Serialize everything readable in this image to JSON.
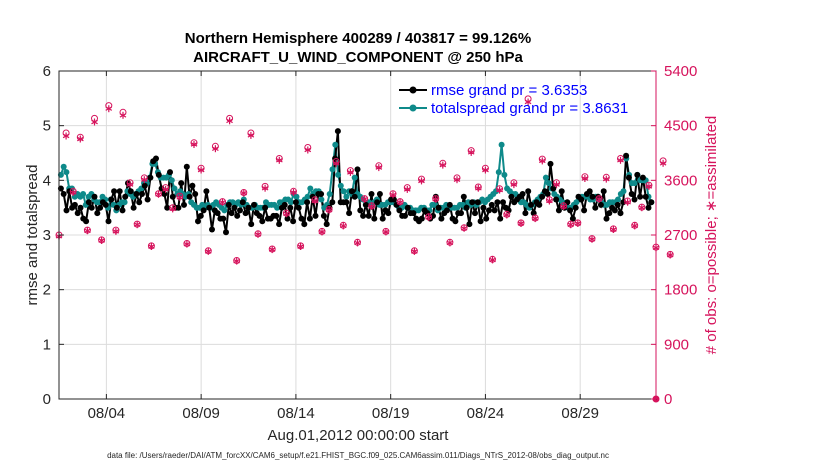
{
  "chart_data": {
    "type": "line",
    "title": "Northern Hemisphere 400289 / 403817 = 99.126%",
    "subtitle": "AIRCRAFT_U_WIND_COMPONENT @ 250 hPa",
    "xlabel": "Aug.01,2012 00:00:00 start",
    "ylabel": "rmse and totalspread",
    "ylabel_right": "# of obs: o=possible; ∗=assimilated",
    "xlim": [
      0,
      31.5
    ],
    "ylim": [
      0,
      6
    ],
    "ylim_right": [
      0,
      5400
    ],
    "x_ticks": [
      {
        "x": 2.5,
        "label": "08/04"
      },
      {
        "x": 7.5,
        "label": "08/09"
      },
      {
        "x": 12.5,
        "label": "08/14"
      },
      {
        "x": 17.5,
        "label": "08/19"
      },
      {
        "x": 22.5,
        "label": "08/24"
      },
      {
        "x": 27.5,
        "label": "08/29"
      }
    ],
    "y_ticks": [
      0,
      1,
      2,
      3,
      4,
      5,
      6
    ],
    "y_ticks_right": [
      0,
      900,
      1800,
      2700,
      3600,
      4500,
      5400
    ],
    "footer": "data file: /Users/raeder/DAI/ATM_forcXX/CAM6_setup/f.e21.FHIST_BGC.f09_025.CAM6assim.011/Diags_NTrS_2012-08/obs_diag_output.nc",
    "legend_position": "top-right",
    "series": [
      {
        "name": "rmse grand pr = 3.6353",
        "color": "#000000",
        "axis": "left",
        "values": [
          3.85,
          3.75,
          3.45,
          3.8,
          3.5,
          3.55,
          3.4,
          3.5,
          3.3,
          3.25,
          3.6,
          3.5,
          3.7,
          3.4,
          3.5,
          3.6,
          3.55,
          3.25,
          3.65,
          3.8,
          3.5,
          3.8,
          3.45,
          3.7,
          3.95,
          3.8,
          3.5,
          3.75,
          3.6,
          3.75,
          3.9,
          3.65,
          4.05,
          4.35,
          4.4,
          4.1,
          3.85,
          3.75,
          3.5,
          4.15,
          3.7,
          3.5,
          3.5,
          3.95,
          3.55,
          4.25,
          3.7,
          3.9,
          3.75,
          3.25,
          3.35,
          3.45,
          3.8,
          3.5,
          3.1,
          3.45,
          3.4,
          3.3,
          3.3,
          3.05,
          3.55,
          3.4,
          3.5,
          3.35,
          3.45,
          3.6,
          3.4,
          3.5,
          3.2,
          3.55,
          3.4,
          3.35,
          3.25,
          3.5,
          3.3,
          3.3,
          3.35,
          3.35,
          3.2,
          3.5,
          3.55,
          3.3,
          3.5,
          3.25,
          3.6,
          3.5,
          3.3,
          3.2,
          3.6,
          3.3,
          3.7,
          3.35,
          3.75,
          3.75,
          3.35,
          3.2,
          3.5,
          3.6,
          4.4,
          4.9,
          3.6,
          3.6,
          3.6,
          3.4,
          3.8,
          3.7,
          4.2,
          3.45,
          3.35,
          3.55,
          3.35,
          3.75,
          3.3,
          3.6,
          3.75,
          3.3,
          3.45,
          3.4,
          3.65,
          3.65,
          3.55,
          3.45,
          3.35,
          3.35,
          3.5,
          3.4,
          3.4,
          3.3,
          3.25,
          3.3,
          3.45,
          3.4,
          3.3,
          3.35,
          3.7,
          3.5,
          3.3,
          3.4,
          3.45,
          3.55,
          3.3,
          3.25,
          3.4,
          3.4,
          3.7,
          3.5,
          3.2,
          3.6,
          3.4,
          3.6,
          3.25,
          3.5,
          3.3,
          3.45,
          3.55,
          3.45,
          3.6,
          3.3,
          3.6,
          3.5,
          3.45,
          3.7,
          3.6,
          3.65,
          3.7,
          3.75,
          3.4,
          3.8,
          3.55,
          3.4,
          3.6,
          3.55,
          3.7,
          3.8,
          3.75,
          4.3,
          3.85,
          3.65,
          3.45,
          3.8,
          3.5,
          3.6,
          3.45,
          3.3,
          3.5,
          3.7,
          3.65,
          3.45,
          3.75,
          3.8,
          3.7,
          3.5,
          3.7,
          3.55,
          3.8,
          3.3,
          3.4,
          3.5,
          3.45,
          3.55,
          3.4,
          3.6,
          4.45,
          4.05,
          3.75,
          3.65,
          4.1,
          3.7,
          4.05,
          3.7,
          3.5,
          3.6
        ]
      },
      {
        "name": "totalspread grand pr = 3.8631",
        "color": "#0e8a8a",
        "axis": "left",
        "values": [
          4.1,
          4.25,
          4.15,
          3.85,
          3.85,
          3.7,
          3.75,
          3.7,
          3.75,
          3.55,
          3.7,
          3.75,
          3.65,
          3.6,
          3.6,
          3.7,
          3.65,
          3.5,
          3.65,
          3.55,
          3.45,
          3.55,
          3.6,
          3.6,
          3.8,
          3.75,
          3.7,
          3.75,
          3.8,
          3.85,
          3.95,
          3.95,
          4.05,
          4.3,
          4.3,
          4.15,
          4.05,
          4.05,
          4.05,
          4.1,
          4.0,
          3.85,
          3.75,
          3.8,
          3.75,
          3.7,
          3.75,
          3.6,
          3.55,
          3.5,
          3.5,
          3.55,
          3.5,
          3.55,
          3.5,
          3.55,
          3.6,
          3.55,
          3.5,
          3.45,
          3.55,
          3.6,
          3.6,
          3.55,
          3.6,
          3.55,
          3.65,
          3.55,
          3.5,
          3.5,
          3.55,
          3.5,
          3.5,
          3.5,
          3.6,
          3.55,
          3.55,
          3.55,
          3.5,
          3.6,
          3.6,
          3.65,
          3.65,
          3.6,
          3.75,
          3.7,
          3.6,
          3.6,
          3.65,
          3.7,
          3.85,
          3.75,
          3.8,
          3.8,
          3.65,
          3.5,
          3.55,
          3.75,
          4.2,
          4.65,
          4.1,
          3.9,
          3.8,
          3.7,
          3.8,
          3.75,
          4.05,
          3.75,
          3.7,
          3.65,
          3.55,
          3.6,
          3.55,
          3.6,
          3.65,
          3.55,
          3.55,
          3.55,
          3.6,
          3.6,
          3.6,
          3.55,
          3.5,
          3.5,
          3.55,
          3.5,
          3.5,
          3.45,
          3.45,
          3.45,
          3.5,
          3.5,
          3.45,
          3.45,
          3.55,
          3.55,
          3.45,
          3.5,
          3.5,
          3.55,
          3.5,
          3.5,
          3.5,
          3.5,
          3.55,
          3.55,
          3.5,
          3.6,
          3.55,
          3.6,
          3.55,
          3.6,
          3.65,
          3.6,
          3.65,
          3.7,
          3.75,
          3.8,
          4.15,
          4.65,
          4.1,
          3.85,
          3.8,
          3.75,
          3.75,
          3.7,
          3.6,
          3.6,
          3.55,
          3.5,
          3.55,
          3.6,
          3.65,
          3.7,
          3.75,
          4.05,
          3.95,
          3.85,
          3.75,
          3.7,
          3.65,
          3.6,
          3.55,
          3.5,
          3.5,
          3.55,
          3.6,
          3.65,
          3.7,
          3.7,
          3.7,
          3.65,
          3.65,
          3.7,
          3.65,
          3.6,
          3.55,
          3.55,
          3.6,
          3.6,
          3.6,
          3.65,
          3.75,
          3.8,
          4.4,
          4.1,
          3.95,
          3.95,
          4.1,
          4.0,
          4.0,
          4.0,
          3.7,
          3.6
        ]
      },
      {
        "name": "obs possible",
        "color": "#d6135c",
        "axis": "right",
        "marker": "o",
        "values": [
          2700,
          4380,
          3420,
          4310,
          2780,
          4620,
          2620,
          4830,
          2780,
          4720,
          3560,
          2880,
          3640,
          2520,
          3380,
          3480,
          3150,
          3340,
          2560,
          4220,
          3800,
          2440,
          4160,
          3250,
          4620,
          2280,
          3400,
          4380,
          2720,
          3500,
          2470,
          3960,
          3060,
          3420,
          2520,
          4140,
          3280,
          2760,
          3120,
          3910,
          2860,
          3760,
          2580,
          3300,
          3180,
          3840,
          2760,
          3380,
          3250,
          3480,
          2440,
          3620,
          3000,
          3300,
          3880,
          2580,
          3640,
          2820,
          4090,
          3490,
          3800,
          2300,
          3460,
          3040,
          3560,
          2900,
          4940,
          2980,
          3950,
          3280,
          3560,
          3180,
          2880,
          2900,
          3660,
          2640,
          3300,
          3650,
          2800,
          3960,
          3260,
          2860,
          3160,
          3520,
          2500,
          3920,
          2380
        ]
      },
      {
        "name": "obs assimilated",
        "color": "#d6135c",
        "axis": "right",
        "marker": "*",
        "values": [
          2680,
          4330,
          3400,
          4280,
          2770,
          4560,
          2610,
          4780,
          2760,
          4670,
          3530,
          2870,
          3610,
          2510,
          3370,
          3450,
          3130,
          3320,
          2550,
          4190,
          3770,
          2430,
          4120,
          3240,
          4580,
          2270,
          3390,
          4340,
          2710,
          3470,
          2460,
          3930,
          3050,
          3400,
          2510,
          4100,
          3260,
          2750,
          3110,
          3880,
          2850,
          3730,
          2570,
          3290,
          3170,
          3810,
          2750,
          3360,
          3240,
          3450,
          2430,
          3590,
          2990,
          3290,
          3850,
          2570,
          3610,
          2810,
          4060,
          3470,
          3770,
          2290,
          3440,
          3030,
          3530,
          2890,
          4890,
          2970,
          3920,
          3260,
          3530,
          3170,
          2870,
          2890,
          3630,
          2630,
          3290,
          3620,
          2790,
          3930,
          3240,
          2850,
          3150,
          3500,
          2490,
          3880,
          2370
        ]
      }
    ],
    "obs_x_start": 0.0,
    "obs_x_step": 0.375
  }
}
